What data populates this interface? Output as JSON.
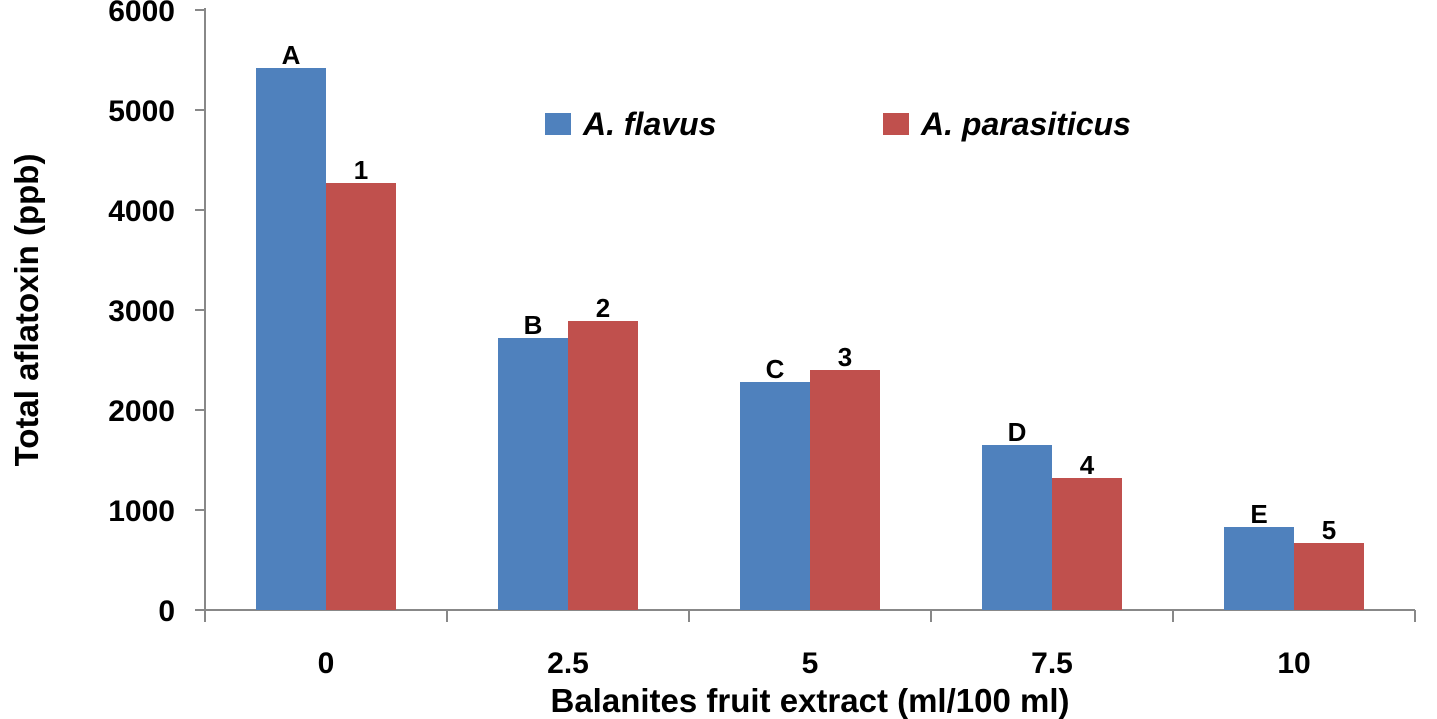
{
  "chart_data": {
    "type": "bar",
    "title": "",
    "xlabel": "Balanites fruit extract (ml/100 ml)",
    "ylabel": "Total aflatoxin (ppb)",
    "categories": [
      "0",
      "2.5",
      "5",
      "7.5",
      "10"
    ],
    "ylim": [
      0,
      6000
    ],
    "yticks": [
      "0",
      "1000",
      "2000",
      "3000",
      "4000",
      "5000",
      "6000"
    ],
    "grid": false,
    "legend_position": "top",
    "series": [
      {
        "name": "A. flavus",
        "color": "#4F81BD",
        "values": [
          5420,
          2720,
          2280,
          1650,
          830
        ],
        "labels": [
          "A",
          "B",
          "C",
          "D",
          "E"
        ]
      },
      {
        "name": "A. parasiticus",
        "color": "#C0504D",
        "values": [
          4270,
          2890,
          2400,
          1320,
          670
        ],
        "labels": [
          "1",
          "2",
          "3",
          "4",
          "5"
        ]
      }
    ]
  }
}
